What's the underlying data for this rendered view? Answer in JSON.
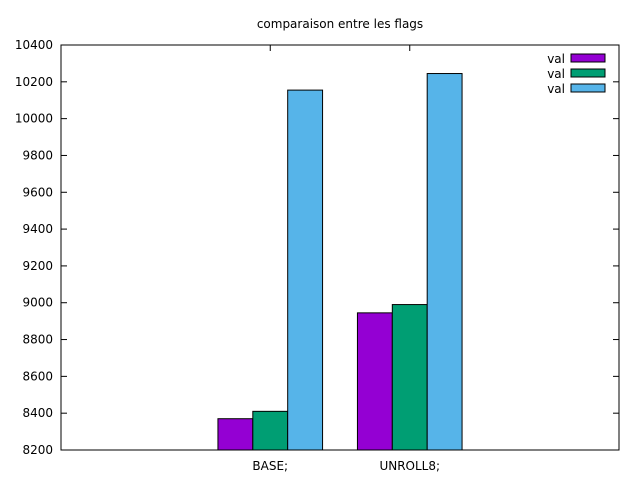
{
  "chart_data": {
    "type": "bar",
    "title": "comparaison entre les flags",
    "xlabel": "",
    "ylabel": "",
    "categories": [
      "BASE;",
      "UNROLL8;"
    ],
    "series": [
      {
        "name": "val",
        "color": "#9400d3",
        "values": [
          8370,
          8945
        ]
      },
      {
        "name": "val",
        "color": "#009e73",
        "values": [
          8410,
          8990
        ]
      },
      {
        "name": "val",
        "color": "#56b4e9",
        "values": [
          10155,
          10245
        ]
      }
    ],
    "ylim": [
      8200,
      10400
    ],
    "yticks": [
      8200,
      8400,
      8600,
      8800,
      9000,
      9200,
      9400,
      9600,
      9800,
      10000,
      10200,
      10400
    ],
    "grid": false,
    "legend_position": "top-right"
  }
}
